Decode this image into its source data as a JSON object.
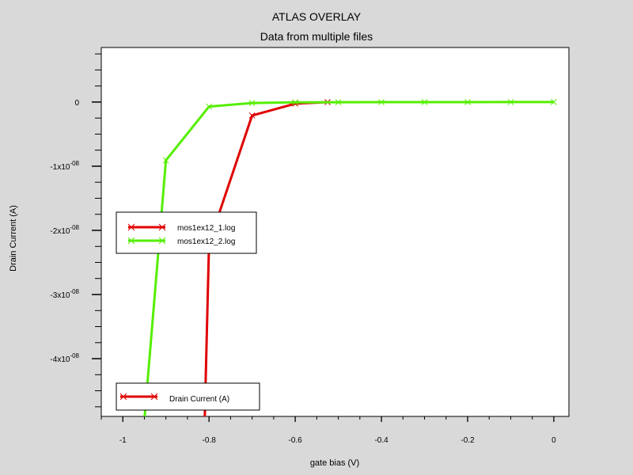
{
  "chart_data": {
    "type": "line",
    "title": "ATLAS OVERLAY",
    "subtitle": "Data from multiple files",
    "xlabel": "gate bias (V)",
    "ylabel": "Drain Current (A)",
    "xlim": [
      -1.05,
      0.035
    ],
    "ylim": [
      -4.9e-08,
      8.5e-09
    ],
    "x_ticks": [
      -1,
      -0.8,
      -0.6,
      -0.4,
      -0.2,
      0
    ],
    "x_tick_labels": [
      "-1",
      "-0.8",
      "-0.6",
      "-0.4",
      "-0.2",
      "0"
    ],
    "y_ticks": [
      0,
      -1e-08,
      -2e-08,
      -3e-08,
      -4e-08
    ],
    "y_tick_labels": [
      {
        "mant": "0",
        "exp": ""
      },
      {
        "mant": "-1x10",
        "exp": "-08"
      },
      {
        "mant": "-2x10",
        "exp": "-08"
      },
      {
        "mant": "-3x10",
        "exp": "-08"
      },
      {
        "mant": "-4x10",
        "exp": "-08"
      }
    ],
    "grid": false,
    "series": [
      {
        "name": "mos1ex12_1.log",
        "color": "#e00000",
        "x": [
          -0.81,
          -0.8,
          -0.7,
          -0.6,
          -0.525
        ],
        "y": [
          -4.95e-08,
          -2.2e-08,
          -2.1e-09,
          -2.5e-10,
          -1e-11
        ]
      },
      {
        "name": "mos1ex12_2.log",
        "color": "#55ee00",
        "x": [
          -0.95,
          -0.9,
          -0.8,
          -0.7,
          -0.6,
          -0.5,
          -0.4,
          -0.3,
          -0.2,
          -0.1,
          0
        ],
        "y": [
          -4.95e-08,
          -9.1e-09,
          -7e-10,
          -1.5e-10,
          -5e-11,
          -3e-11,
          -2e-11,
          -1e-11,
          -1e-11,
          -5e-12,
          0
        ]
      }
    ],
    "legend": {
      "placement": "left-middle",
      "entries": [
        "mos1ex12_1.log",
        "mos1ex12_2.log"
      ]
    },
    "legend2": {
      "placement": "bottom-left",
      "entries": [
        {
          "label": "Drain Current (A)",
          "color": "#e00000"
        }
      ]
    }
  }
}
